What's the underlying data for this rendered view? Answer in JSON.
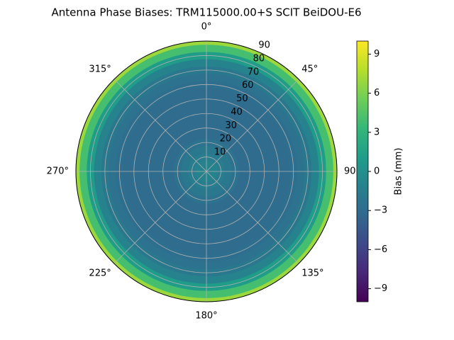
{
  "chart_data": {
    "type": "polar-contour",
    "title": "Antenna Phase Biases: TRM115000.00+S  SCIT BeiDOU-E6",
    "x": [
      0,
      5,
      10,
      15,
      20,
      25,
      30,
      35,
      40,
      45,
      50,
      55,
      60,
      65,
      70,
      75,
      80,
      85,
      90
    ],
    "values": [
      -1,
      -1,
      -1.5,
      -2,
      -2.5,
      -3,
      -3,
      -3,
      -3,
      -3,
      -3,
      -3,
      -2.8,
      -2.5,
      -2,
      -1,
      1,
      4,
      7
    ],
    "xlim": [
      0,
      90
    ],
    "xticks": [
      10,
      20,
      30,
      40,
      50,
      60,
      70,
      80,
      90
    ],
    "thetaticks": [
      {
        "value": 0,
        "label": "0°"
      },
      {
        "value": 45,
        "label": "45°"
      },
      {
        "value": 90,
        "label": "90"
      },
      {
        "value": 135,
        "label": "135°"
      },
      {
        "value": 180,
        "label": "180°"
      },
      {
        "value": 225,
        "label": "225°"
      },
      {
        "value": 270,
        "label": "270°"
      },
      {
        "value": 315,
        "label": "315°"
      }
    ],
    "colorbar_label": "Bias (mm)",
    "clim": [
      -10,
      10
    ],
    "cticks": [
      {
        "value": -9,
        "label": "−9"
      },
      {
        "value": -6,
        "label": "−6"
      },
      {
        "value": -3,
        "label": "−3"
      },
      0,
      3,
      6,
      9
    ],
    "grid": true
  }
}
